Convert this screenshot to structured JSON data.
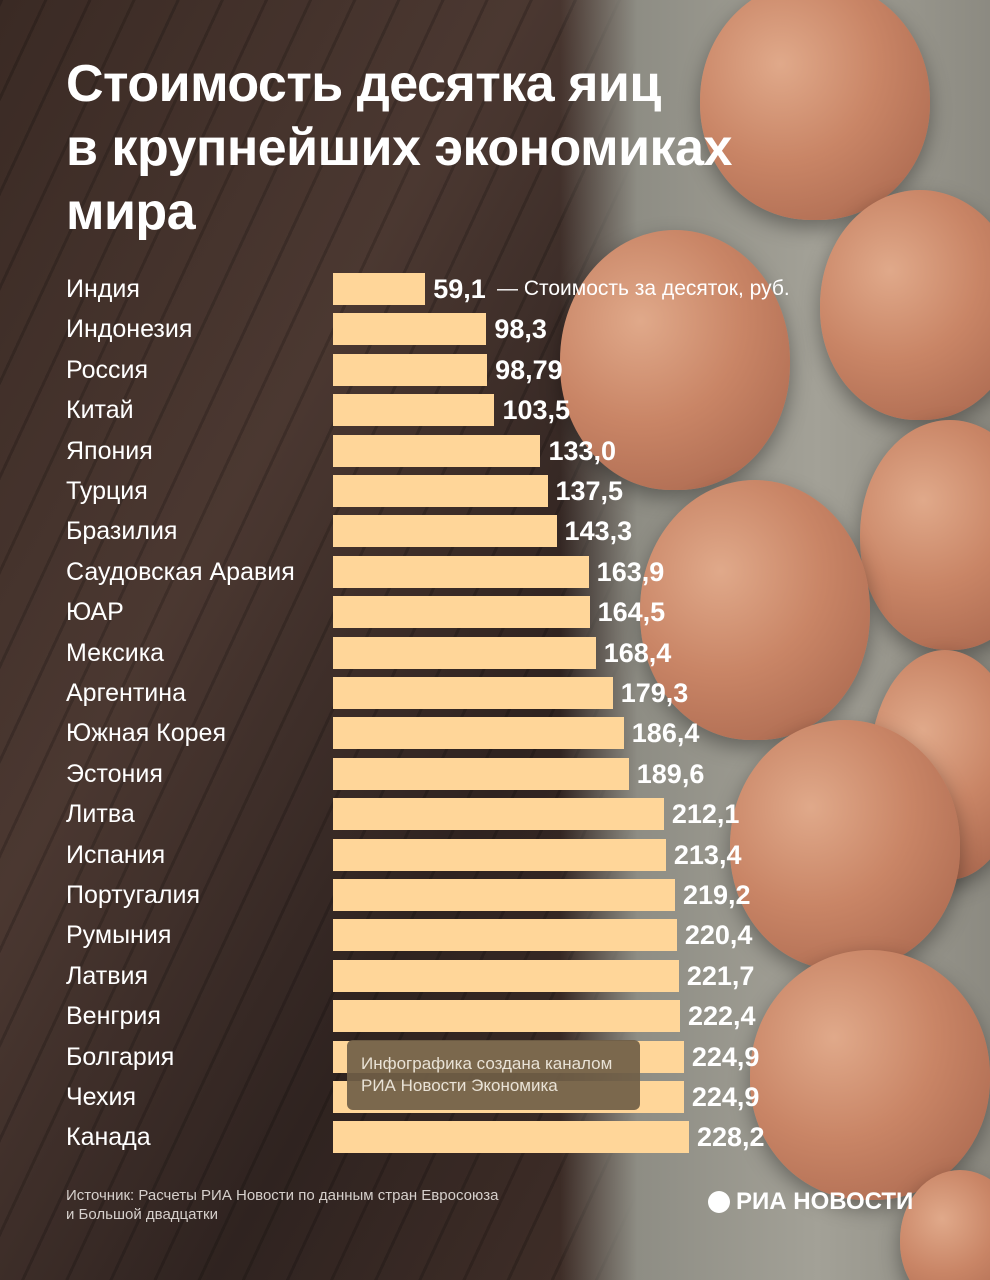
{
  "chart_data": {
    "type": "bar",
    "orientation": "horizontal",
    "title": "Стоимость десятка яиц в крупнейших экономиках мира",
    "title_lines": [
      "Стоимость десятка яиц",
      "в крупнейших экономиках",
      "мира"
    ],
    "legend": "— Стоимость за десяток, руб.",
    "categories": [
      "Индия",
      "Индонезия",
      "Россия",
      "Китай",
      "Япония",
      "Турция",
      "Бразилия",
      "Саудовская Аравия",
      "ЮАР",
      "Мексика",
      "Аргентина",
      "Южная Корея",
      "Эстония",
      "Литва",
      "Испания",
      "Португалия",
      "Румыния",
      "Латвия",
      "Венгрия",
      "Болгария",
      "Чехия",
      "Канада"
    ],
    "values": [
      59.1,
      98.3,
      98.79,
      103.5,
      133.0,
      137.5,
      143.3,
      163.9,
      164.5,
      168.4,
      179.3,
      186.4,
      189.6,
      212.1,
      213.4,
      219.2,
      220.4,
      221.7,
      222.4,
      224.9,
      224.9,
      228.2
    ],
    "value_labels": [
      "59,1",
      "98,3",
      "98,79",
      "103,5",
      "133,0",
      "137,5",
      "143,3",
      "163,9",
      "164,5",
      "168,4",
      "179,3",
      "186,4",
      "189,6",
      "212,1",
      "213,4",
      "219,2",
      "220,4",
      "221,7",
      "222,4",
      "224,9",
      "224,9",
      "228,2"
    ],
    "unit": "руб.",
    "xlim": [
      0,
      230
    ],
    "bar_color": "#ffd699"
  },
  "watermark": [
    "Инфографика создана каналом",
    "РИА Новости Экономика"
  ],
  "source": [
    "Источник: Расчеты РИА Новости по данным стран Евросоюза",
    "и Большой двадцатки"
  ],
  "logo": "РИА НОВОСТИ"
}
